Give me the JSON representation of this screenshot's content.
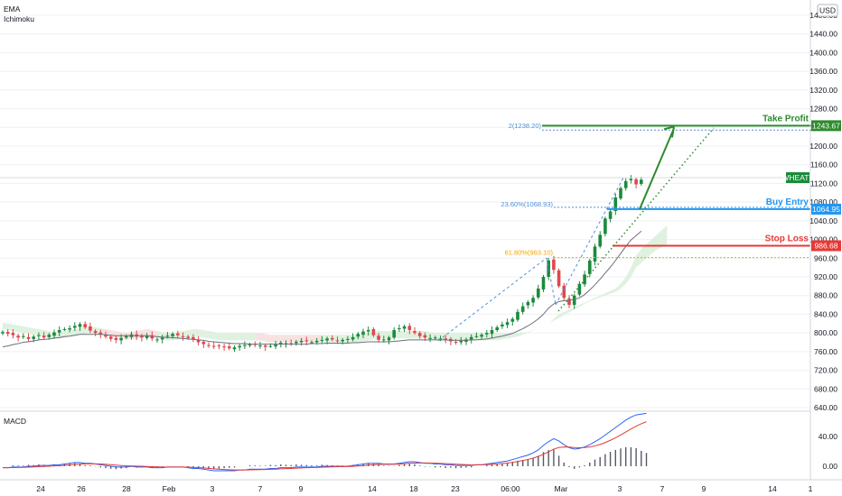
{
  "indicators": [
    "EMA",
    "Ichimoku"
  ],
  "currency": "USD",
  "macd_label": "MACD",
  "colors": {
    "bull": "#1b8a3c",
    "bear": "#e0474c",
    "ema": "#6b6f7a",
    "take_profit": "#2e8b2e",
    "buy_entry": "#2196f3",
    "stop_loss": "#e53935",
    "fib_top": "#4f8fd6",
    "fib_618": "#f0a500",
    "cloud": "#dcefdc",
    "cloud_red": "#f7dede",
    "macd_line": "#2962ff",
    "signal_line": "#e53935",
    "hist": "#555a66",
    "grid": "#eef0f3"
  },
  "chart_data": {
    "type": "candlestick",
    "ylim": [
      640,
      1480
    ],
    "price_ticks": [
      "1480.00",
      "1440.00",
      "1400.00",
      "1360.00",
      "1320.00",
      "1280.00",
      "1240.00",
      "1200.00",
      "1160.00",
      "1120.00",
      "1080.00",
      "1040.00",
      "1000.00",
      "960.00",
      "920.00",
      "880.00",
      "840.00",
      "800.00",
      "760.00",
      "720.00",
      "680.00",
      "640.00"
    ],
    "x_ticks": [
      "24",
      "26",
      "28",
      "Feb",
      "3",
      "7",
      "9",
      "14",
      "18",
      "23",
      "06:00",
      "Mar",
      "3",
      "7",
      "9",
      "14",
      "1"
    ],
    "levels": {
      "take_profit": {
        "label": "Take Profit",
        "value": "1243.67"
      },
      "buy_entry": {
        "label": "Buy Entry",
        "value": "1064.95"
      },
      "stop_loss": {
        "label": "Stop Loss",
        "value": "986.68"
      },
      "symbol_tag": "WHEATF"
    },
    "fib_labels": {
      "top": "2(1238.20)",
      "mid": "23.60%(1068.93)",
      "low": "61.80%(963.10)"
    },
    "closes": [
      802,
      798,
      795,
      790,
      793,
      787,
      792,
      795,
      790,
      796,
      801,
      806,
      808,
      810,
      815,
      819,
      812,
      805,
      800,
      797,
      792,
      787,
      785,
      789,
      793,
      797,
      792,
      790,
      794,
      788,
      786,
      790,
      794,
      798,
      795,
      792,
      789,
      786,
      780,
      776,
      772,
      771,
      772,
      770,
      767,
      769,
      772,
      774,
      775,
      775,
      773,
      770,
      772,
      775,
      779,
      778,
      776,
      781,
      783,
      782,
      780,
      783,
      785,
      788,
      786,
      782,
      785,
      787,
      791,
      798,
      803,
      806,
      795,
      785,
      786,
      790,
      806,
      810,
      814,
      806,
      800,
      793,
      790,
      789,
      790,
      788,
      785,
      782,
      779,
      783,
      786,
      791,
      793,
      796,
      800,
      806,
      812,
      818,
      823,
      830,
      845,
      857,
      866,
      875,
      895,
      920,
      955,
      935,
      900,
      875,
      860,
      880,
      905,
      925,
      955,
      985,
      1010,
      1045,
      1060,
      1090,
      1110,
      1125,
      1130,
      1118,
      1128
    ],
    "ema": [
      770,
      772,
      775,
      777,
      780,
      781,
      783,
      785,
      786,
      787,
      789,
      790,
      792,
      793,
      795,
      797,
      797,
      797,
      797,
      797,
      796,
      795,
      794,
      794,
      794,
      794,
      794,
      794,
      794,
      793,
      792,
      791,
      790,
      790,
      789,
      788,
      787,
      786,
      785,
      784,
      782,
      781,
      780,
      779,
      778,
      777,
      777,
      777,
      776,
      776,
      776,
      776,
      776,
      776,
      776,
      776,
      776,
      776,
      776,
      776,
      777,
      777,
      777,
      778,
      778,
      778,
      778,
      778,
      779,
      779,
      780,
      781,
      781,
      781,
      781,
      781,
      782,
      783,
      784,
      785,
      785,
      785,
      785,
      785,
      785,
      785,
      785,
      784,
      784,
      784,
      784,
      785,
      785,
      786,
      787,
      789,
      791,
      793,
      796,
      799,
      804,
      809,
      815,
      822,
      830,
      840,
      853,
      862,
      867,
      869,
      870,
      872,
      875,
      882,
      892,
      903,
      915,
      928,
      941,
      955,
      970,
      985,
      999,
      1008,
      1018
    ],
    "cloud_upper": [
      822,
      820,
      818,
      816,
      814,
      812,
      810,
      808,
      806,
      804,
      802,
      802,
      804,
      806,
      808,
      810,
      812,
      814,
      812,
      810,
      808,
      806,
      804,
      802,
      800,
      802,
      804,
      806,
      808,
      806,
      804,
      802,
      800,
      800,
      802,
      804,
      806,
      808,
      808,
      806,
      804,
      802,
      800,
      800,
      800,
      800,
      800,
      800,
      800,
      800,
      800,
      798,
      796,
      796,
      796,
      796,
      796,
      796,
      796,
      796,
      796,
      796,
      796,
      796,
      796,
      796,
      796,
      796,
      796,
      796,
      798,
      800,
      802,
      804,
      804,
      804,
      804,
      804,
      804,
      804,
      804,
      804,
      804,
      802,
      800,
      800,
      800,
      800,
      800,
      800,
      800,
      800,
      800,
      800,
      800,
      800,
      800,
      800,
      800,
      800,
      800,
      800,
      802,
      806,
      810,
      815,
      820,
      830,
      840,
      845,
      850,
      855,
      860,
      865,
      870,
      875,
      880,
      885,
      890,
      895,
      905,
      920,
      940,
      965,
      980,
      990,
      1000,
      1010,
      1020,
      1030
    ],
    "cloud_lower": [
      808,
      806,
      804,
      802,
      800,
      798,
      796,
      794,
      792,
      790,
      788,
      788,
      790,
      792,
      794,
      796,
      798,
      800,
      798,
      796,
      794,
      792,
      790,
      788,
      786,
      786,
      788,
      790,
      792,
      790,
      788,
      786,
      784,
      784,
      786,
      788,
      790,
      792,
      792,
      790,
      788,
      786,
      784,
      784,
      784,
      784,
      784,
      784,
      784,
      784,
      784,
      782,
      780,
      780,
      780,
      780,
      780,
      780,
      780,
      780,
      780,
      780,
      780,
      780,
      780,
      780,
      780,
      780,
      780,
      780,
      782,
      784,
      786,
      788,
      788,
      788,
      788,
      788,
      788,
      788,
      788,
      788,
      788,
      786,
      784,
      784,
      784,
      784,
      784,
      784,
      784,
      784,
      784,
      784,
      784,
      784,
      784,
      786,
      788,
      790,
      792,
      796,
      800,
      805,
      810,
      815,
      820,
      826,
      832,
      838,
      844,
      850,
      856,
      862,
      868,
      872,
      876,
      880,
      884,
      888,
      895,
      905,
      920,
      940,
      950,
      960,
      970,
      978,
      984,
      990
    ],
    "macd": [
      -2,
      -2,
      -1,
      -1,
      -1,
      0,
      0,
      1,
      1,
      1,
      2,
      2,
      3,
      4,
      5,
      5,
      4,
      4,
      3,
      2,
      1,
      0,
      -1,
      -1,
      -1,
      0,
      -1,
      -1,
      -1,
      -2,
      -2,
      -2,
      -1,
      -1,
      -1,
      -1,
      -2,
      -3,
      -3,
      -4,
      -5,
      -6,
      -6,
      -6,
      -6,
      -6,
      -5,
      -5,
      -4,
      -4,
      -4,
      -4,
      -3,
      -3,
      -2,
      -2,
      -2,
      -1,
      -1,
      -1,
      -1,
      -1,
      0,
      0,
      0,
      0,
      0,
      0,
      1,
      2,
      3,
      4,
      4,
      4,
      3,
      3,
      3,
      4,
      5,
      6,
      6,
      5,
      4,
      4,
      3,
      3,
      2,
      2,
      1,
      1,
      1,
      1,
      2,
      2,
      3,
      4,
      5,
      6,
      7,
      9,
      11,
      13,
      15,
      18,
      22,
      28,
      33,
      37,
      34,
      29,
      25,
      23,
      24,
      26,
      29,
      33,
      37,
      42,
      47,
      52,
      57,
      62,
      66,
      69,
      70,
      71
    ]
  }
}
